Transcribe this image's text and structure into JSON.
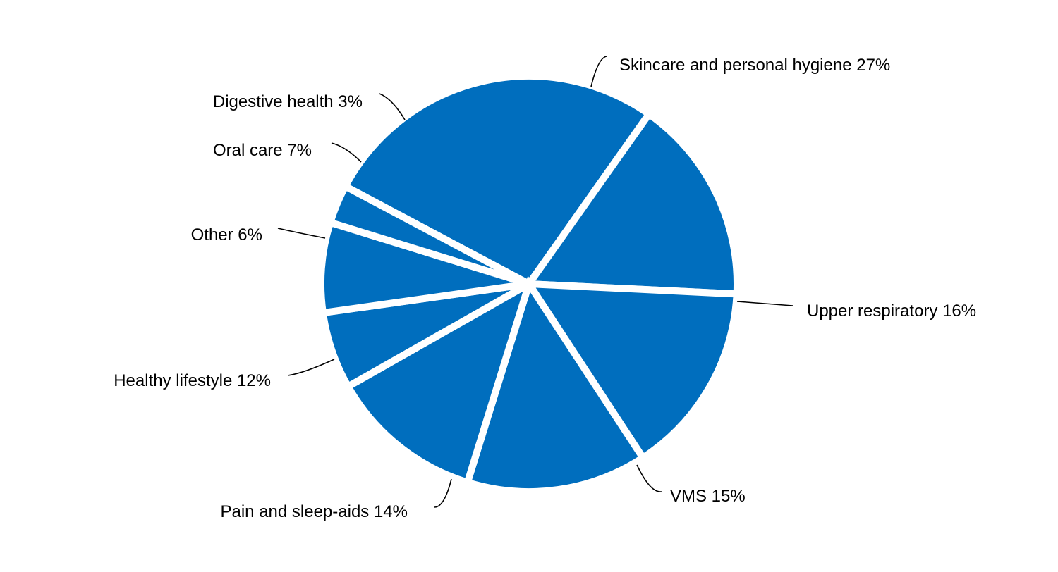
{
  "chart_data": {
    "type": "pie",
    "slices": [
      {
        "label": "Skincare and personal hygiene 27%",
        "value": 27
      },
      {
        "label": "Upper respiratory 16%",
        "value": 16
      },
      {
        "label": "VMS 15%",
        "value": 15
      },
      {
        "label": "Pain and sleep-aids 14%",
        "value": 14
      },
      {
        "label": "Healthy lifestyle 12%",
        "value": 12
      },
      {
        "label": "Other 6%",
        "value": 6
      },
      {
        "label": "Oral care 7%",
        "value": 7
      },
      {
        "label": "Digestive health 3%",
        "value": 3
      }
    ],
    "colors": {
      "slice": "#006EBE",
      "separator": "#FFFFFF",
      "text": "#000000"
    }
  }
}
